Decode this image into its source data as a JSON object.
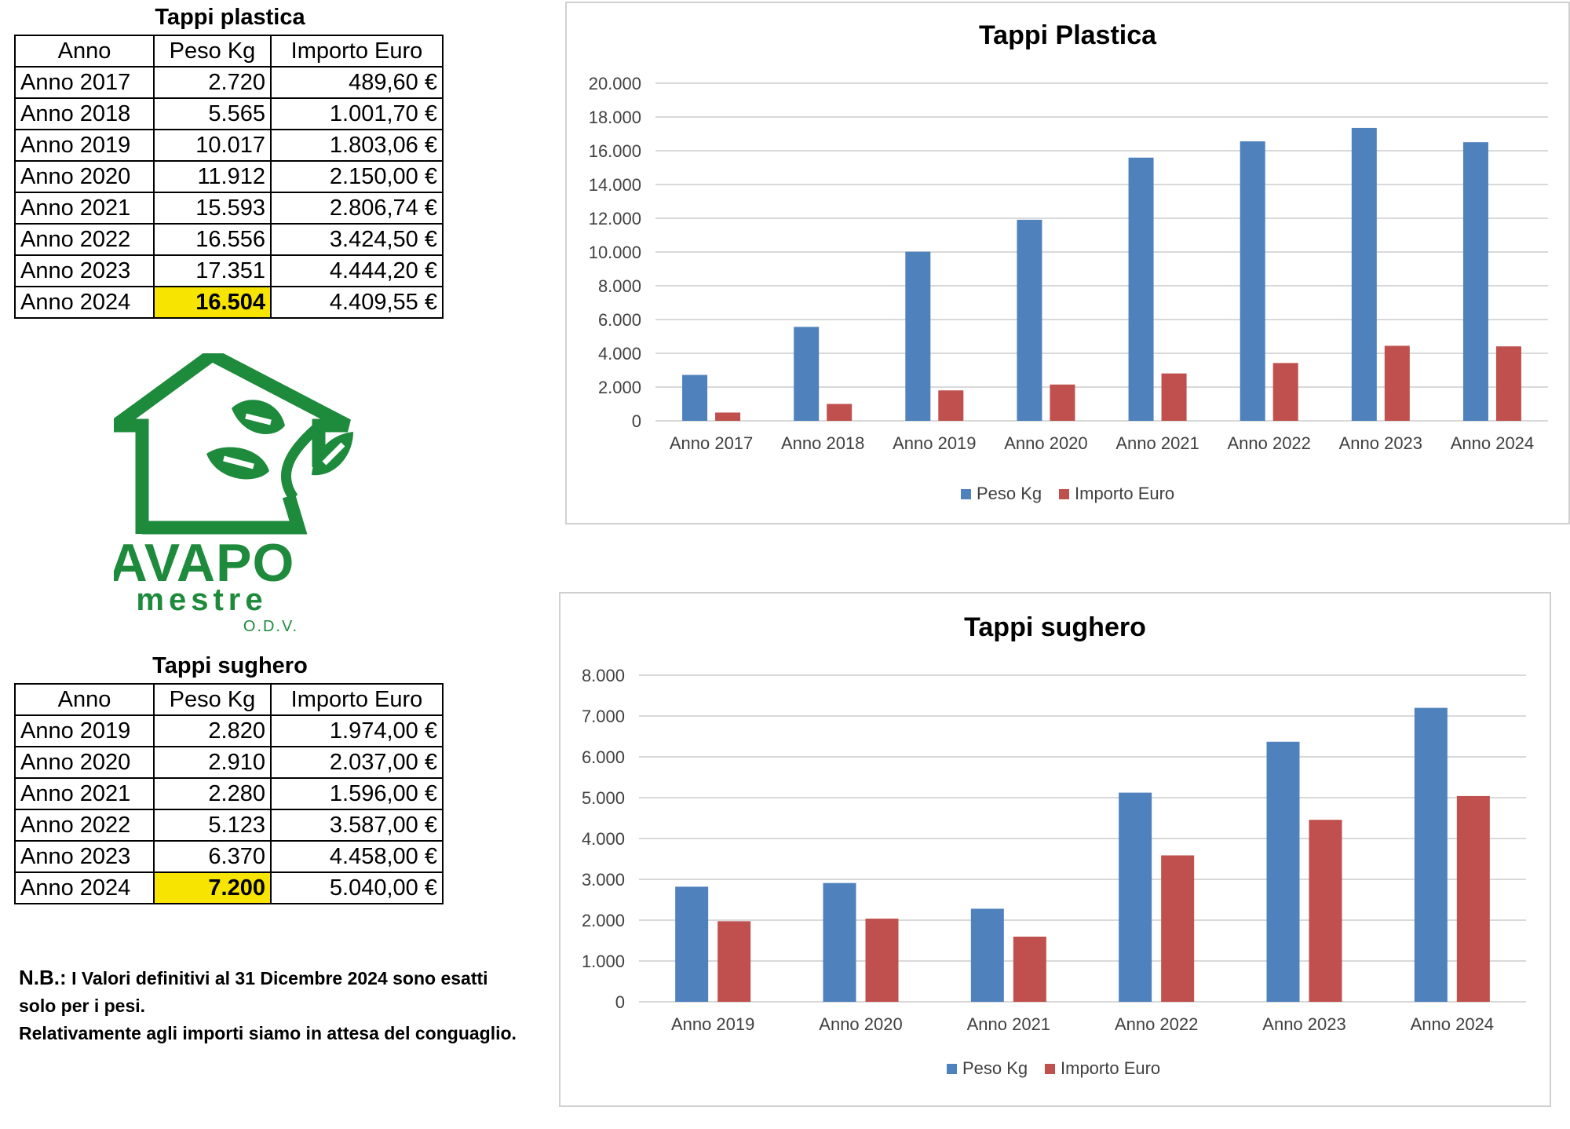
{
  "plastic_table": {
    "title": "Tappi plastica",
    "headers": [
      "Anno",
      "Peso Kg",
      "Importo Euro"
    ],
    "rows": [
      {
        "year": "Anno 2017",
        "kg": "2.720",
        "euro": "489,60 €"
      },
      {
        "year": "Anno 2018",
        "kg": "5.565",
        "euro": "1.001,70 €"
      },
      {
        "year": "Anno 2019",
        "kg": "10.017",
        "euro": "1.803,06 €"
      },
      {
        "year": "Anno 2020",
        "kg": "11.912",
        "euro": "2.150,00 €"
      },
      {
        "year": "Anno 2021",
        "kg": "15.593",
        "euro": "2.806,74 €"
      },
      {
        "year": "Anno 2022",
        "kg": "16.556",
        "euro": "3.424,50 €"
      },
      {
        "year": "Anno 2023",
        "kg": "17.351",
        "euro": "4.444,20 €"
      },
      {
        "year": "Anno 2024",
        "kg": "16.504",
        "euro": "4.409,55 €",
        "highlight": true
      }
    ]
  },
  "cork_table": {
    "title": "Tappi sughero",
    "headers": [
      "Anno",
      "Peso Kg",
      "Importo Euro"
    ],
    "rows": [
      {
        "year": "Anno 2019",
        "kg": "2.820",
        "euro": "1.974,00 €"
      },
      {
        "year": "Anno 2020",
        "kg": "2.910",
        "euro": "2.037,00 €"
      },
      {
        "year": "Anno 2021",
        "kg": "2.280",
        "euro": "1.596,00 €"
      },
      {
        "year": "Anno 2022",
        "kg": "5.123",
        "euro": "3.587,00 €"
      },
      {
        "year": "Anno 2023",
        "kg": "6.370",
        "euro": "4.458,00 €"
      },
      {
        "year": "Anno 2024",
        "kg": "7.200",
        "euro": "5.040,00 €",
        "highlight": true
      }
    ]
  },
  "logo": {
    "name": "AVAPO",
    "city": "mestre",
    "suffix": "O.D.V.",
    "color": "#1e8a3c"
  },
  "note": {
    "prefix": "N.B.:",
    "line1": "I Valori definitivi al 31 Dicembre 2024 sono esatti",
    "line2": "solo per i pesi.",
    "line3": "Relativamente agli importi siamo in attesa del conguaglio."
  },
  "colors": {
    "series_kg": "#4f81bd",
    "series_euro": "#c0504d",
    "highlight": "#f7e400",
    "gridline": "#d9d9d9"
  },
  "chart_data": [
    {
      "type": "bar",
      "title": "Tappi Plastica",
      "categories": [
        "Anno 2017",
        "Anno 2018",
        "Anno 2019",
        "Anno 2020",
        "Anno 2021",
        "Anno 2022",
        "Anno 2023",
        "Anno 2024"
      ],
      "series": [
        {
          "name": "Peso Kg",
          "values": [
            2720,
            5565,
            10017,
            11912,
            15593,
            16556,
            17351,
            16504
          ]
        },
        {
          "name": "Importo Euro",
          "values": [
            489.6,
            1001.7,
            1803.06,
            2150.0,
            2806.74,
            3424.5,
            4444.2,
            4409.55
          ]
        }
      ],
      "ylim": [
        0,
        20000
      ],
      "yticks": [
        "0",
        "2.000",
        "4.000",
        "6.000",
        "8.000",
        "10.000",
        "12.000",
        "14.000",
        "16.000",
        "18.000",
        "20.000"
      ],
      "grid": true,
      "legend": "bottom"
    },
    {
      "type": "bar",
      "title": "Tappi sughero",
      "categories": [
        "Anno 2019",
        "Anno 2020",
        "Anno 2021",
        "Anno 2022",
        "Anno 2023",
        "Anno 2024"
      ],
      "series": [
        {
          "name": "Peso Kg",
          "values": [
            2820,
            2910,
            2280,
            5123,
            6370,
            7200
          ]
        },
        {
          "name": "Importo Euro",
          "values": [
            1974,
            2037,
            1596,
            3587,
            4458,
            5040
          ]
        }
      ],
      "ylim": [
        0,
        8000
      ],
      "yticks": [
        "0",
        "1.000",
        "2.000",
        "3.000",
        "4.000",
        "5.000",
        "6.000",
        "7.000",
        "8.000"
      ],
      "grid": true,
      "legend": "bottom"
    }
  ]
}
